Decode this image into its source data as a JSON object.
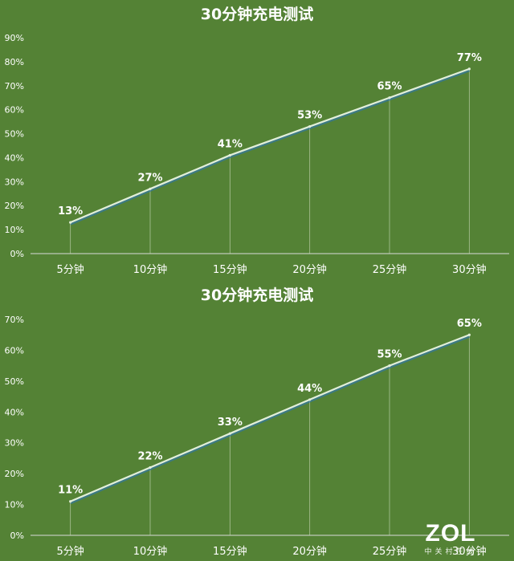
{
  "chart_data": [
    {
      "type": "line",
      "title": "30分钟充电测试",
      "categories": [
        "5分钟",
        "10分钟",
        "15分钟",
        "20分钟",
        "25分钟",
        "30分钟"
      ],
      "values": [
        13,
        27,
        41,
        53,
        65,
        77
      ],
      "data_labels": [
        "13%",
        "27%",
        "41%",
        "53%",
        "65%",
        "77%"
      ],
      "yticks": [
        "0%",
        "10%",
        "20%",
        "30%",
        "40%",
        "50%",
        "60%",
        "70%",
        "80%",
        "90%"
      ],
      "ylim": [
        0,
        90
      ],
      "grid": false,
      "drop_lines": true,
      "line_color": "#e2efd9"
    },
    {
      "type": "line",
      "title": "30分钟充电测试",
      "categories": [
        "5分钟",
        "10分钟",
        "15分钟",
        "20分钟",
        "25分钟",
        "30分钟"
      ],
      "values": [
        11,
        22,
        33,
        44,
        55,
        65
      ],
      "data_labels": [
        "11%",
        "22%",
        "33%",
        "44%",
        "55%",
        "65%"
      ],
      "yticks": [
        "0%",
        "10%",
        "20%",
        "30%",
        "40%",
        "50%",
        "60%",
        "70%"
      ],
      "ylim": [
        0,
        70
      ],
      "grid": false,
      "drop_lines": true,
      "line_color": "#e2efd9"
    }
  ],
  "watermark": {
    "main": "ZOL",
    "sub": "中关村在线"
  },
  "colors": {
    "background": "#548235"
  }
}
